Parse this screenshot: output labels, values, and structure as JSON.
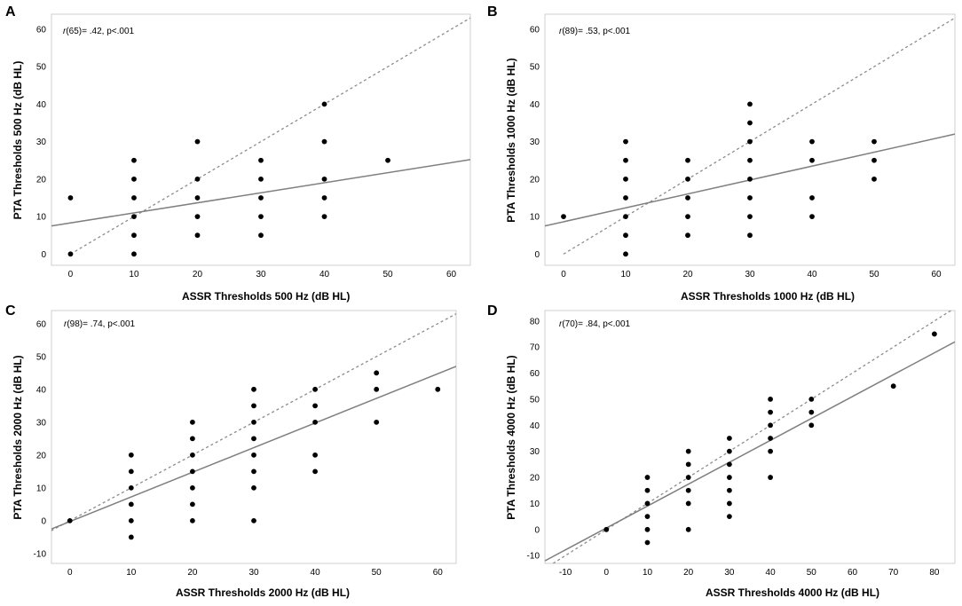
{
  "colors": {
    "points": "#000000",
    "fit_line": "#7f7f7f",
    "identity_line": "#8c8c8c",
    "frame": "#cfcfcf",
    "background": "#ffffff"
  },
  "chart_data": [
    {
      "panel": "A",
      "type": "scatter",
      "annotation_r": "r",
      "annotation_rest": "(65)= .42, p<.001",
      "xlabel": "ASSR Thresholds 500 Hz (dB HL)",
      "ylabel": "PTA Thresholds 500 Hz (dB HL)",
      "xlim": [
        -3,
        63
      ],
      "ylim": [
        -3,
        64
      ],
      "xticks": [
        0,
        10,
        20,
        30,
        40,
        50,
        60
      ],
      "yticks": [
        0,
        10,
        20,
        30,
        40,
        50,
        60
      ],
      "points": [
        [
          0,
          0
        ],
        [
          0,
          15
        ],
        [
          10,
          0
        ],
        [
          10,
          5
        ],
        [
          10,
          10
        ],
        [
          10,
          15
        ],
        [
          10,
          20
        ],
        [
          10,
          25
        ],
        [
          20,
          5
        ],
        [
          20,
          10
        ],
        [
          20,
          15
        ],
        [
          20,
          20
        ],
        [
          20,
          30
        ],
        [
          30,
          5
        ],
        [
          30,
          10
        ],
        [
          30,
          15
        ],
        [
          30,
          20
        ],
        [
          30,
          25
        ],
        [
          40,
          10
        ],
        [
          40,
          15
        ],
        [
          40,
          20
        ],
        [
          40,
          30
        ],
        [
          40,
          40
        ],
        [
          50,
          25
        ]
      ],
      "fit_line": [
        [
          -3,
          7.5
        ],
        [
          63,
          25.2
        ]
      ],
      "identity_line": [
        [
          0,
          0
        ],
        [
          63,
          63
        ]
      ]
    },
    {
      "panel": "B",
      "type": "scatter",
      "annotation_r": "r",
      "annotation_rest": "(89)= .53, p<.001",
      "xlabel": "ASSR Thresholds 1000 Hz (dB HL)",
      "ylabel": "PTA Thresholds 1000 Hz (dB HL)",
      "xlim": [
        -3,
        63
      ],
      "ylim": [
        -3,
        64
      ],
      "xticks": [
        0,
        10,
        20,
        30,
        40,
        50,
        60
      ],
      "yticks": [
        0,
        10,
        20,
        30,
        40,
        50,
        60
      ],
      "points": [
        [
          0,
          10
        ],
        [
          10,
          0
        ],
        [
          10,
          5
        ],
        [
          10,
          10
        ],
        [
          10,
          15
        ],
        [
          10,
          20
        ],
        [
          10,
          25
        ],
        [
          10,
          30
        ],
        [
          20,
          5
        ],
        [
          20,
          10
        ],
        [
          20,
          15
        ],
        [
          20,
          20
        ],
        [
          20,
          25
        ],
        [
          30,
          5
        ],
        [
          30,
          10
        ],
        [
          30,
          15
        ],
        [
          30,
          20
        ],
        [
          30,
          25
        ],
        [
          30,
          30
        ],
        [
          30,
          35
        ],
        [
          30,
          40
        ],
        [
          40,
          10
        ],
        [
          40,
          15
        ],
        [
          40,
          25
        ],
        [
          40,
          30
        ],
        [
          50,
          20
        ],
        [
          50,
          25
        ],
        [
          50,
          30
        ]
      ],
      "fit_line": [
        [
          -3,
          7.5
        ],
        [
          63,
          32
        ]
      ],
      "identity_line": [
        [
          0,
          0
        ],
        [
          63,
          63
        ]
      ]
    },
    {
      "panel": "C",
      "type": "scatter",
      "annotation_r": "r",
      "annotation_rest": "(98)= .74, p<.001",
      "xlabel": "ASSR Thresholds 2000 Hz (dB HL)",
      "ylabel": "PTA Thresholds 2000 Hz (dB HL)",
      "xlim": [
        -3,
        63
      ],
      "ylim": [
        -13,
        64
      ],
      "xticks": [
        0,
        10,
        20,
        30,
        40,
        50,
        60
      ],
      "yticks": [
        -10,
        0,
        10,
        20,
        30,
        40,
        50,
        60
      ],
      "points": [
        [
          0,
          0
        ],
        [
          10,
          -5
        ],
        [
          10,
          0
        ],
        [
          10,
          5
        ],
        [
          10,
          10
        ],
        [
          10,
          15
        ],
        [
          10,
          20
        ],
        [
          20,
          0
        ],
        [
          20,
          5
        ],
        [
          20,
          10
        ],
        [
          20,
          15
        ],
        [
          20,
          20
        ],
        [
          20,
          25
        ],
        [
          20,
          30
        ],
        [
          30,
          0
        ],
        [
          30,
          10
        ],
        [
          30,
          15
        ],
        [
          30,
          20
        ],
        [
          30,
          25
        ],
        [
          30,
          30
        ],
        [
          30,
          35
        ],
        [
          30,
          40
        ],
        [
          40,
          15
        ],
        [
          40,
          20
        ],
        [
          40,
          30
        ],
        [
          40,
          35
        ],
        [
          40,
          40
        ],
        [
          50,
          30
        ],
        [
          50,
          40
        ],
        [
          50,
          45
        ],
        [
          60,
          40
        ]
      ],
      "fit_line": [
        [
          -3,
          -2.5
        ],
        [
          63,
          47
        ]
      ],
      "identity_line": [
        [
          -13,
          -13
        ],
        [
          63,
          63
        ]
      ]
    },
    {
      "panel": "D",
      "type": "scatter",
      "annotation_r": "r",
      "annotation_rest": "(70)= .84, p<.001",
      "xlabel": "ASSR Thresholds 4000 Hz (dB HL)",
      "ylabel": "PTA Thresholds 4000 Hz (dB HL)",
      "xlim": [
        -15,
        85
      ],
      "ylim": [
        -13,
        84
      ],
      "xticks": [
        -10,
        0,
        10,
        20,
        30,
        40,
        50,
        60,
        70,
        80
      ],
      "yticks": [
        -10,
        0,
        10,
        20,
        30,
        40,
        50,
        60,
        70,
        80
      ],
      "points": [
        [
          0,
          0
        ],
        [
          10,
          -5
        ],
        [
          10,
          0
        ],
        [
          10,
          5
        ],
        [
          10,
          10
        ],
        [
          10,
          15
        ],
        [
          10,
          20
        ],
        [
          20,
          0
        ],
        [
          20,
          10
        ],
        [
          20,
          15
        ],
        [
          20,
          20
        ],
        [
          20,
          25
        ],
        [
          20,
          30
        ],
        [
          30,
          5
        ],
        [
          30,
          10
        ],
        [
          30,
          15
        ],
        [
          30,
          20
        ],
        [
          30,
          25
        ],
        [
          30,
          30
        ],
        [
          30,
          35
        ],
        [
          40,
          20
        ],
        [
          40,
          30
        ],
        [
          40,
          35
        ],
        [
          40,
          40
        ],
        [
          40,
          45
        ],
        [
          40,
          50
        ],
        [
          50,
          40
        ],
        [
          50,
          45
        ],
        [
          50,
          50
        ],
        [
          70,
          55
        ],
        [
          80,
          75
        ]
      ],
      "fit_line": [
        [
          -15,
          -12
        ],
        [
          85,
          72
        ]
      ],
      "identity_line": [
        [
          -13,
          -13
        ],
        [
          85,
          85
        ]
      ]
    }
  ]
}
